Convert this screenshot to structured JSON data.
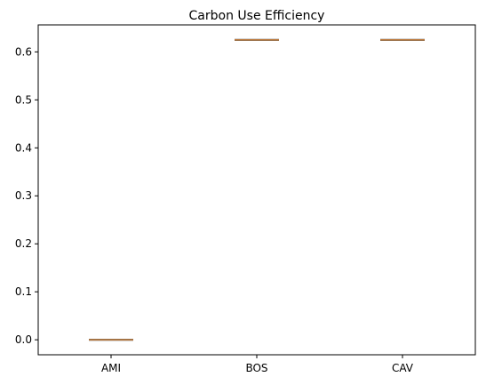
{
  "chart_data": {
    "type": "box",
    "title": "Carbon Use Efficiency",
    "xlabel": "",
    "ylabel": "",
    "categories": [
      "AMI",
      "BOS",
      "CAV"
    ],
    "values": [
      0.0,
      0.625,
      0.625
    ],
    "yticks": [
      "0.0",
      "0.1",
      "0.2",
      "0.3",
      "0.4",
      "0.5",
      "0.6"
    ],
    "ylim": [
      -0.03125,
      0.65625
    ],
    "grid": false,
    "colors": {
      "median": "#e08a3c",
      "box": "#555555",
      "axis": "#000000"
    }
  }
}
